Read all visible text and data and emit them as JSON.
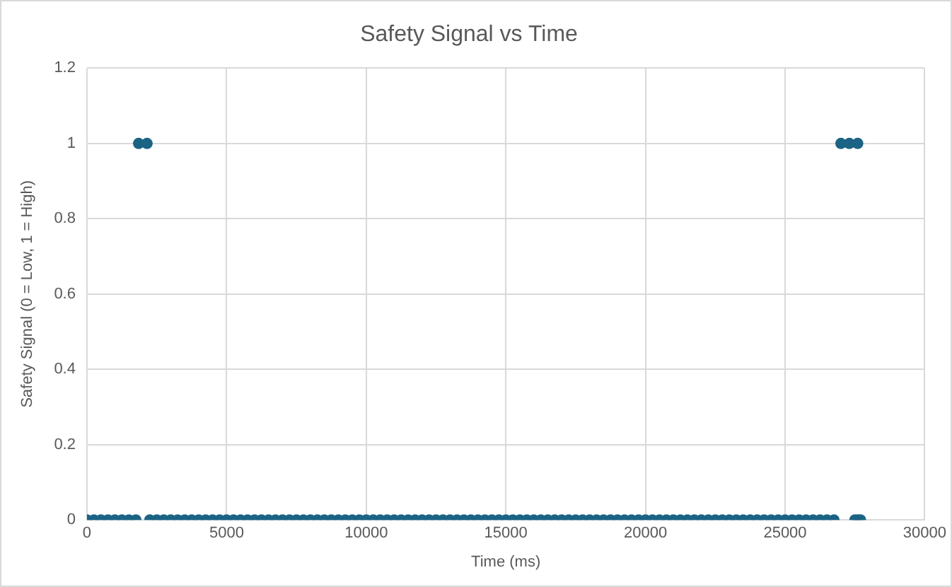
{
  "chart_data": {
    "type": "scatter",
    "title": "Safety Signal vs Time",
    "xlabel": "Time (ms)",
    "ylabel": "Safety Signal (0 = Low, 1 = High)",
    "xlim": [
      0,
      30000
    ],
    "xticks": [
      0,
      5000,
      10000,
      15000,
      20000,
      25000,
      30000
    ],
    "ylim": [
      0,
      1.2
    ],
    "yticks": [
      0,
      0.2,
      0.4,
      0.6,
      0.8,
      1,
      1.2
    ],
    "grid": true,
    "legend": false,
    "marker": "circle",
    "series": [
      {
        "color": "#1b6384",
        "x": [
          0,
          250,
          500,
          750,
          1000,
          1250,
          1500,
          1750,
          1850,
          2150,
          2250,
          2500,
          2750,
          3000,
          3250,
          3500,
          3750,
          4000,
          4250,
          4500,
          4750,
          5000,
          5250,
          5500,
          5750,
          6000,
          6250,
          6500,
          6750,
          7000,
          7250,
          7500,
          7750,
          8000,
          8250,
          8500,
          8750,
          9000,
          9250,
          9500,
          9750,
          10000,
          10250,
          10500,
          10750,
          11000,
          11250,
          11500,
          11750,
          12000,
          12250,
          12500,
          12750,
          13000,
          13250,
          13500,
          13750,
          14000,
          14250,
          14500,
          14750,
          15000,
          15250,
          15500,
          15750,
          16000,
          16250,
          16500,
          16750,
          17000,
          17250,
          17500,
          17750,
          18000,
          18250,
          18500,
          18750,
          19000,
          19250,
          19500,
          19750,
          20000,
          20250,
          20500,
          20750,
          21000,
          21250,
          21500,
          21750,
          22000,
          22250,
          22500,
          22750,
          23000,
          23250,
          23500,
          23750,
          24000,
          24250,
          24500,
          24750,
          25000,
          25250,
          25500,
          25750,
          26000,
          26250,
          26500,
          26750,
          27000,
          27300,
          27600,
          27500,
          27600,
          27700
        ],
        "values": [
          0,
          0,
          0,
          0,
          0,
          0,
          0,
          0,
          1,
          1,
          0,
          0,
          0,
          0,
          0,
          0,
          0,
          0,
          0,
          0,
          0,
          0,
          0,
          0,
          0,
          0,
          0,
          0,
          0,
          0,
          0,
          0,
          0,
          0,
          0,
          0,
          0,
          0,
          0,
          0,
          0,
          0,
          0,
          0,
          0,
          0,
          0,
          0,
          0,
          0,
          0,
          0,
          0,
          0,
          0,
          0,
          0,
          0,
          0,
          0,
          0,
          0,
          0,
          0,
          0,
          0,
          0,
          0,
          0,
          0,
          0,
          0,
          0,
          0,
          0,
          0,
          0,
          0,
          0,
          0,
          0,
          0,
          0,
          0,
          0,
          0,
          0,
          0,
          0,
          0,
          0,
          0,
          0,
          0,
          0,
          0,
          0,
          0,
          0,
          0,
          0,
          0,
          0,
          0,
          0,
          0,
          0,
          0,
          0,
          1,
          1,
          1,
          0,
          0,
          0
        ]
      }
    ]
  }
}
